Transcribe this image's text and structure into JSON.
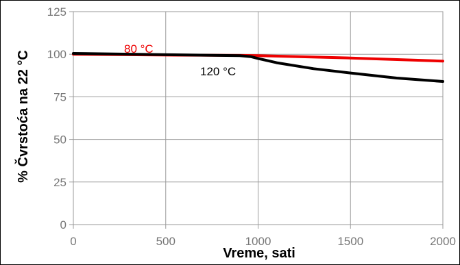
{
  "chart_data": {
    "type": "line",
    "xlabel": "Vreme, sati",
    "ylabel": "% Čvrstoća na 22 °C",
    "xlim": [
      0,
      2000
    ],
    "ylim": [
      0,
      125
    ],
    "xticks": [
      0,
      500,
      1000,
      1500,
      2000
    ],
    "yticks": [
      0,
      25,
      50,
      75,
      100,
      125
    ],
    "grid": true,
    "series": [
      {
        "name": "80 °C",
        "color": "#ee0000",
        "x": [
          0,
          500,
          900,
          1000,
          1500,
          2000
        ],
        "y": [
          100,
          99.5,
          99.3,
          99.2,
          97.8,
          96
        ]
      },
      {
        "name": "120 °C",
        "color": "#000000",
        "x": [
          0,
          500,
          900,
          960,
          1000,
          1100,
          1300,
          1500,
          1750,
          2000
        ],
        "y": [
          100.5,
          99.7,
          99.2,
          98.6,
          97.5,
          95,
          91.5,
          89,
          86,
          84
        ]
      }
    ]
  }
}
